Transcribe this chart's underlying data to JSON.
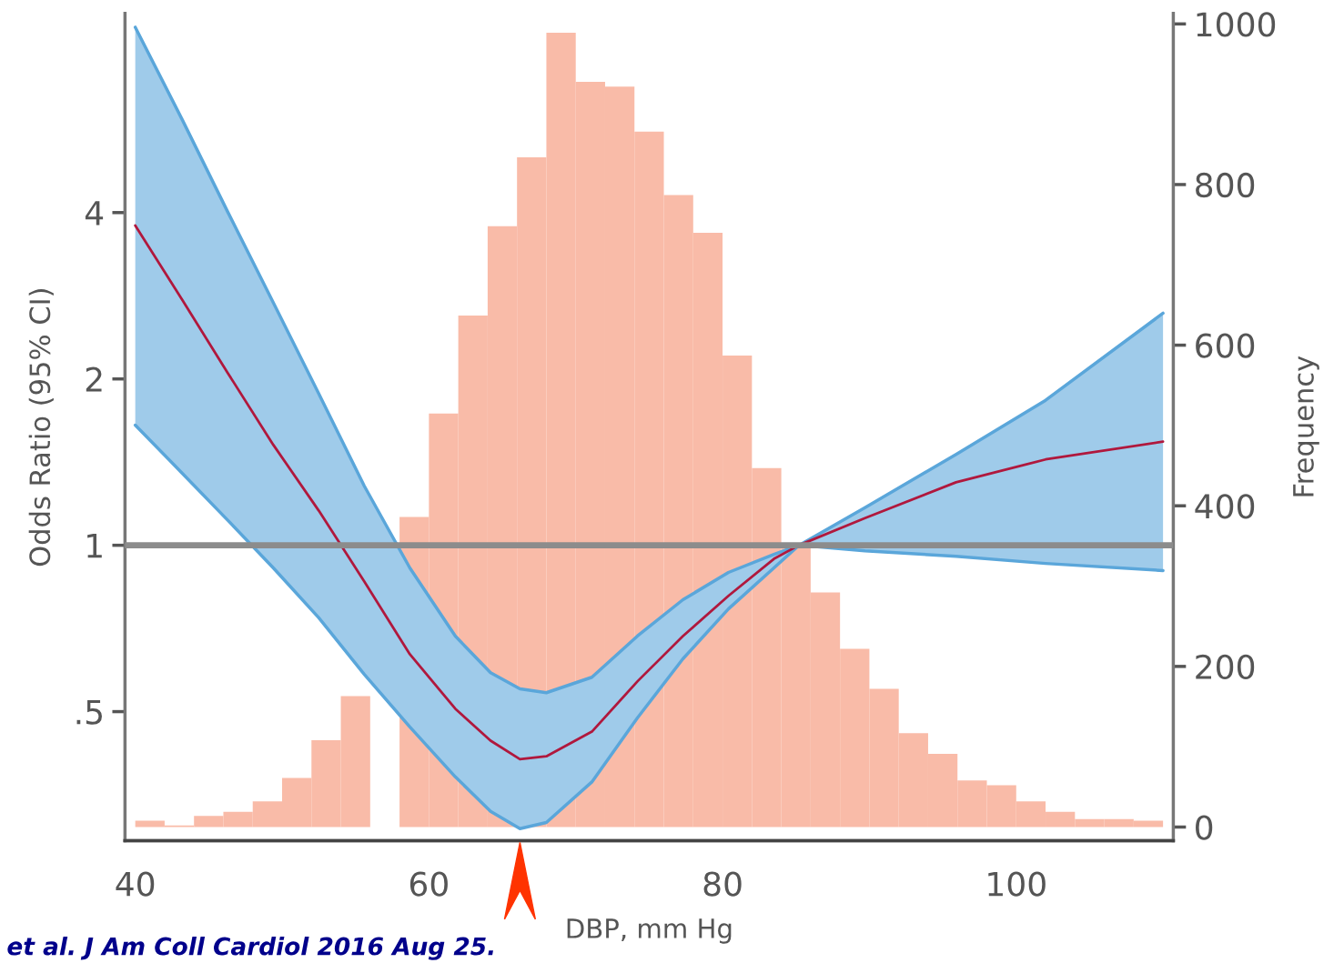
{
  "chart_data": {
    "type": "line",
    "xlabel": "DBP, mm Hg",
    "ylabel": "Odds Ratio (95% CI)",
    "y2label": "Frequency",
    "xlim": [
      39.3,
      110.7
    ],
    "xticks": [
      40,
      60,
      80,
      100
    ],
    "log": "y",
    "ylim": [
      0.292,
      9.17
    ],
    "yticks": [
      {
        "value": 0.5,
        "label": ".5"
      },
      1,
      2,
      4
    ],
    "y2lim": [
      -17,
      1013
    ],
    "y2ticks": [
      0,
      200,
      400,
      600,
      800,
      1000
    ],
    "grid": false,
    "ref_lines": [
      {
        "axis": "y",
        "value": 1,
        "color": "#8c8c8c"
      }
    ],
    "annotations": [
      "et al. J Am Coll Cardiol 2016 Aug 25."
    ],
    "series": [
      {
        "type": "histogram",
        "axis": "y2",
        "color": "#f9bba8",
        "bins": [
          40,
          42,
          44,
          46,
          48,
          50,
          52,
          54,
          56,
          58,
          60,
          62,
          64,
          66,
          68,
          70,
          72,
          74,
          76,
          78,
          80,
          82,
          84,
          86,
          88,
          90,
          92,
          94,
          96,
          98,
          100,
          102,
          104,
          106,
          108,
          110
        ],
        "values": [
          8,
          2,
          14,
          19,
          32,
          61,
          108,
          163,
          null,
          386,
          515,
          637,
          748,
          834,
          989,
          928,
          922,
          866,
          787,
          740,
          587,
          447,
          350,
          292,
          222,
          172,
          117,
          91,
          58,
          52,
          32,
          19,
          10,
          10,
          8
        ]
      },
      {
        "type": "line",
        "color": "#5aa6da",
        "x": [
          40,
          43.2,
          46.3,
          49.4,
          52.5,
          55.6,
          58.7,
          61.8,
          64.2,
          66.2,
          68.0,
          71.1,
          74.2,
          77.3,
          80.4,
          83.5,
          85.2,
          89.7,
          95.9,
          102.0,
          110
        ],
        "values": [
          8.66,
          5.89,
          4.01,
          2.75,
          1.88,
          1.28,
          0.91,
          0.685,
          0.588,
          0.55,
          0.541,
          0.577,
          0.685,
          0.797,
          0.893,
          0.963,
          1.0,
          1.17,
          1.46,
          1.83,
          2.63
        ]
      },
      {
        "type": "line",
        "color": "#5aa6da",
        "x": [
          40,
          43.2,
          46.3,
          49.4,
          52.5,
          55.6,
          58.7,
          61.8,
          64.2,
          66.2,
          68.0,
          71.1,
          74.2,
          77.3,
          80.4,
          83.5,
          85.2,
          89.7,
          95.9,
          102.0,
          110
        ],
        "values": [
          1.65,
          1.35,
          1.11,
          0.91,
          0.739,
          0.584,
          0.469,
          0.381,
          0.33,
          0.307,
          0.315,
          0.373,
          0.487,
          0.623,
          0.767,
          0.91,
          1.0,
          0.977,
          0.955,
          0.927,
          0.9
        ]
      },
      {
        "color": "#b0183d",
        "x": [
          40,
          43.2,
          46.3,
          49.4,
          52.5,
          55.6,
          58.7,
          61.8,
          64.2,
          66.2,
          68.0,
          71.1,
          74.2,
          77.3,
          80.4,
          83.5,
          85.2,
          89.7,
          95.9,
          102.0,
          110
        ],
        "values": [
          3.79,
          2.78,
          2.05,
          1.52,
          1.155,
          0.86,
          0.635,
          0.506,
          0.443,
          0.41,
          0.415,
          0.46,
          0.567,
          0.685,
          0.81,
          0.945,
          1.0,
          1.12,
          1.3,
          1.43,
          1.54
        ],
        "lower": [
          1.65,
          1.35,
          1.11,
          0.91,
          0.739,
          0.584,
          0.469,
          0.381,
          0.33,
          0.307,
          0.315,
          0.373,
          0.487,
          0.623,
          0.767,
          0.91,
          1.0,
          0.977,
          0.955,
          0.927,
          0.9
        ],
        "upper": [
          8.66,
          5.89,
          4.01,
          2.75,
          1.88,
          1.28,
          0.91,
          0.685,
          0.588,
          0.55,
          0.541,
          0.577,
          0.685,
          0.797,
          0.893,
          0.963,
          1.0,
          1.17,
          1.46,
          1.83,
          2.63
        ]
      }
    ]
  }
}
